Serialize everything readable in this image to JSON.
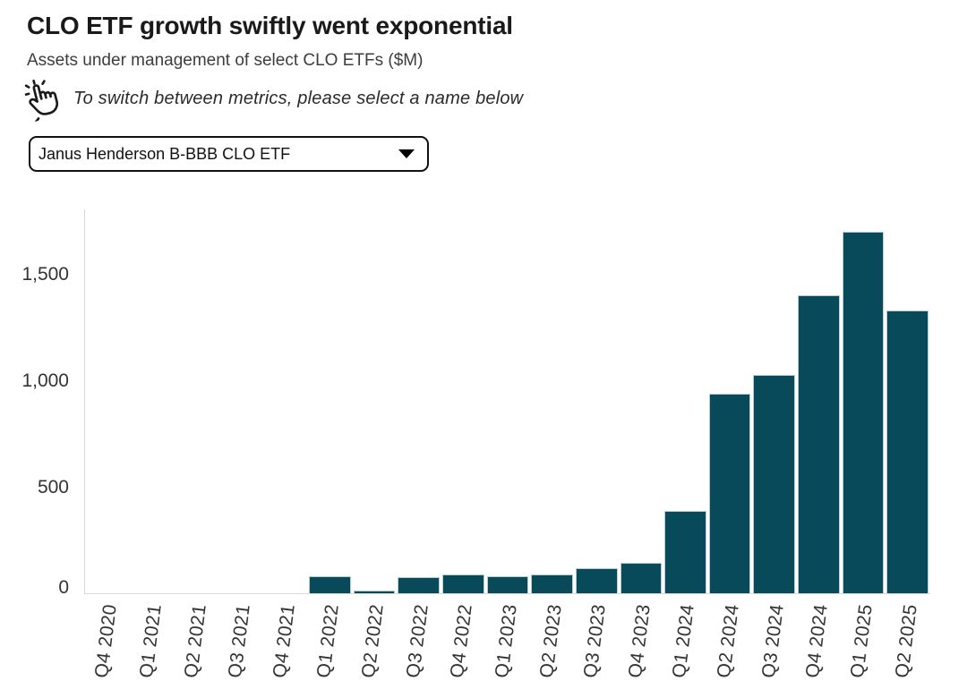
{
  "header": {
    "title": "CLO ETF growth swiftly went exponential",
    "subtitle": "Assets under management of select CLO ETFs ($M)",
    "note": "To switch between metrics, please select a name below"
  },
  "selector": {
    "selected_option": "Janus Henderson B-BBB CLO ETF"
  },
  "chart_data": {
    "type": "bar",
    "title": "Assets under management of select CLO ETFs ($M)",
    "series_name": "Janus Henderson B-BBB CLO ETF",
    "categories": [
      "Q4 2020",
      "Q1 2021",
      "Q2 2021",
      "Q3 2021",
      "Q4 2021",
      "Q1 2022",
      "Q2 2022",
      "Q3 2022",
      "Q4 2022",
      "Q1 2023",
      "Q2 2023",
      "Q3 2023",
      "Q4 2023",
      "Q1 2024",
      "Q2 2024",
      "Q3 2024",
      "Q4 2024",
      "Q1 2025",
      "Q2 2025"
    ],
    "values": [
      0,
      0,
      0,
      0,
      0,
      77,
      7,
      73,
      84,
      74,
      84,
      112,
      140,
      385,
      935,
      1025,
      1400,
      1700,
      1330
    ],
    "xlabel": "",
    "ylabel": "",
    "yticks": [
      0,
      500,
      1000,
      1500
    ],
    "ytick_labels": [
      "0",
      "500",
      "1,000",
      "1,500"
    ],
    "ylim": [
      0,
      1810
    ],
    "grid": false,
    "legend": false,
    "bar_color": "#084a5a",
    "bar_stroke": "#b7cdd4",
    "axis_color": "#d9d9d9",
    "tick_text_color": "#333333"
  }
}
